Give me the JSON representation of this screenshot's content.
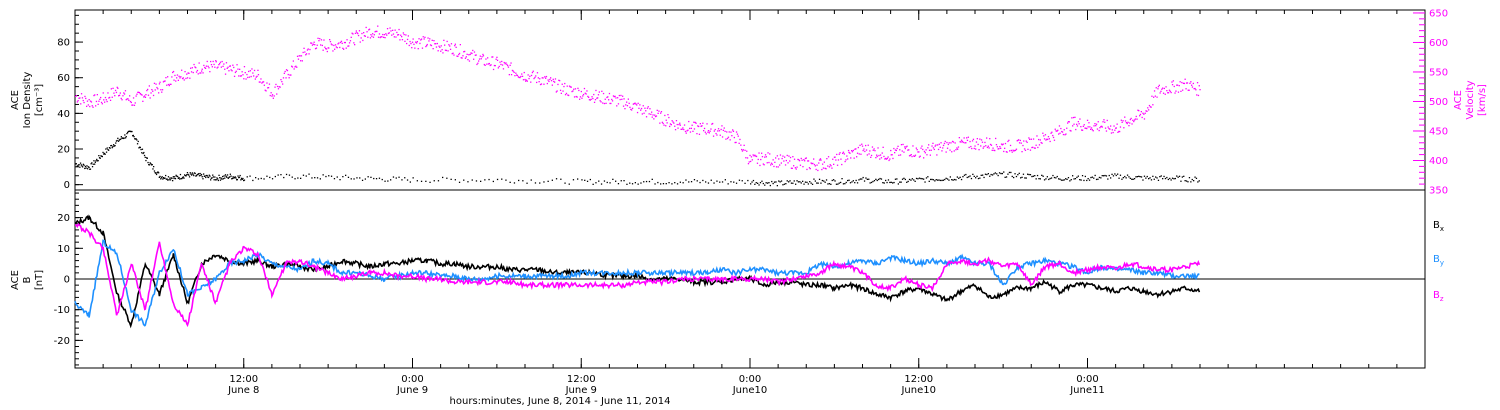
{
  "chart_data": [
    {
      "type": "scatter",
      "title": "",
      "xlabel": "hours:minutes,  June  8, 2014 - June 11, 2014",
      "ylabel_left": [
        "ACE",
        "Ion Density",
        "[cm⁻³]"
      ],
      "ylabel_right": [
        "ACE",
        "Velocity",
        "[km/s]"
      ],
      "xlim_hours": [
        0,
        96
      ],
      "ylim_left": [
        -3,
        98
      ],
      "ylim_right": [
        350,
        655
      ],
      "yticks_left": [
        "0",
        "20",
        "40",
        "60",
        "80"
      ],
      "yticks_right": [
        "350",
        "400",
        "450",
        "500",
        "550",
        "600",
        "650"
      ],
      "colors": {
        "density": "#000000",
        "velocity": "#ff00ff"
      },
      "series": [
        {
          "key": "density",
          "axis": "left",
          "x": [
            0,
            1,
            2,
            3,
            4,
            5,
            6,
            7,
            8,
            9,
            10,
            11,
            12,
            16,
            20,
            24,
            30,
            36,
            40,
            44,
            48,
            50,
            52,
            54,
            56,
            58,
            60,
            62,
            64,
            66,
            68,
            70,
            72,
            74,
            76,
            78,
            80
          ],
          "y": [
            12,
            10,
            18,
            25,
            30,
            15,
            5,
            4,
            6,
            5,
            4,
            5,
            4,
            5,
            4,
            3,
            3,
            2,
            2,
            2,
            2,
            1,
            2,
            2,
            3,
            2,
            3,
            4,
            5,
            6,
            5,
            4,
            4,
            5,
            4,
            4,
            3
          ]
        },
        {
          "key": "velocity",
          "axis": "right",
          "x": [
            0,
            1,
            2,
            3,
            4,
            5,
            6,
            7,
            8,
            9,
            10,
            11,
            12,
            13,
            14,
            15,
            16,
            17,
            18,
            19,
            20,
            21,
            22,
            23,
            24,
            25,
            26,
            27,
            28,
            29,
            30,
            31,
            32,
            33,
            34,
            35,
            36,
            37,
            38,
            39,
            40,
            41,
            42,
            43,
            44,
            45,
            46,
            47,
            48,
            49,
            50,
            51,
            52,
            53,
            54,
            55,
            56,
            57,
            58,
            59,
            60,
            61,
            62,
            63,
            64,
            65,
            66,
            67,
            68,
            69,
            70,
            71,
            72,
            73,
            74,
            75,
            76,
            77,
            78,
            79,
            80
          ],
          "y": [
            510,
            500,
            505,
            520,
            500,
            515,
            525,
            545,
            550,
            560,
            560,
            555,
            550,
            545,
            515,
            545,
            575,
            600,
            595,
            600,
            610,
            620,
            618,
            615,
            602,
            600,
            595,
            590,
            580,
            570,
            565,
            555,
            545,
            540,
            530,
            520,
            515,
            510,
            505,
            500,
            490,
            480,
            470,
            460,
            455,
            455,
            450,
            440,
            400,
            405,
            400,
            398,
            395,
            395,
            400,
            410,
            420,
            415,
            410,
            420,
            415,
            420,
            425,
            430,
            430,
            430,
            425,
            425,
            430,
            440,
            450,
            465,
            460,
            460,
            455,
            470,
            480,
            520,
            525,
            530,
            520
          ]
        }
      ]
    },
    {
      "type": "line",
      "title": "",
      "ylabel": [
        "ACE",
        "B",
        "[nT]"
      ],
      "xlim_hours": [
        0,
        96
      ],
      "ylim": [
        -29,
        29
      ],
      "yticks": [
        "-20",
        "-10",
        "0",
        "10",
        "20"
      ],
      "x_ticks": [
        {
          "hours": 12,
          "label": "12:00",
          "sublabel": "June 8"
        },
        {
          "hours": 24,
          "label": "0:00",
          "sublabel": "June 9"
        },
        {
          "hours": 36,
          "label": "12:00",
          "sublabel": "June 9"
        },
        {
          "hours": 48,
          "label": "0:00",
          "sublabel": "June10"
        },
        {
          "hours": 60,
          "label": "12:00",
          "sublabel": "June10"
        },
        {
          "hours": 72,
          "label": "0:00",
          "sublabel": "June11"
        }
      ],
      "colors": {
        "Bx": "#000000",
        "By": "#1e90ff",
        "Bz": "#ff00ff"
      },
      "legend": [
        {
          "key": "Bx",
          "label": "B",
          "sub": "x"
        },
        {
          "key": "By",
          "label": "B",
          "sub": "y"
        },
        {
          "key": "Bz",
          "label": "B",
          "sub": "z"
        }
      ],
      "x": [
        0,
        1,
        2,
        3,
        4,
        5,
        6,
        7,
        8,
        9,
        10,
        11,
        12,
        13,
        14,
        15,
        16,
        17,
        18,
        19,
        20,
        21,
        22,
        23,
        24,
        25,
        26,
        27,
        28,
        29,
        30,
        31,
        32,
        33,
        34,
        35,
        36,
        37,
        38,
        39,
        40,
        41,
        42,
        43,
        44,
        45,
        46,
        47,
        48,
        49,
        50,
        51,
        52,
        53,
        54,
        55,
        56,
        57,
        58,
        59,
        60,
        61,
        62,
        63,
        64,
        65,
        66,
        67,
        68,
        69,
        70,
        71,
        72,
        73,
        74,
        75,
        76,
        77,
        78,
        79,
        80
      ],
      "series": [
        {
          "key": "Bx",
          "values": [
            18,
            20,
            15,
            -5,
            -15,
            5,
            -5,
            8,
            -8,
            5,
            8,
            6,
            5,
            6,
            4,
            5,
            4,
            3,
            4,
            6,
            5,
            4,
            5,
            5,
            6,
            6,
            5,
            5,
            4,
            4,
            4,
            3,
            3,
            3,
            2,
            2,
            2,
            2,
            1,
            1,
            1,
            0,
            0,
            0,
            -1,
            -1,
            -1,
            0,
            0,
            -2,
            -1,
            -1,
            -2,
            -2,
            -3,
            -2,
            -3,
            -5,
            -6,
            -4,
            -3,
            -5,
            -7,
            -4,
            -2,
            -6,
            -5,
            -3,
            -3,
            -1,
            -4,
            -2,
            -2,
            -3,
            -4,
            -3,
            -4,
            -5,
            -4,
            -3,
            -4
          ]
        },
        {
          "key": "By",
          "values": [
            -8,
            -12,
            12,
            8,
            -10,
            -15,
            2,
            10,
            -5,
            -3,
            0,
            5,
            6,
            8,
            5,
            4,
            3,
            6,
            5,
            2,
            2,
            1,
            0,
            1,
            2,
            2,
            1,
            1,
            0,
            0,
            1,
            1,
            1,
            1,
            1,
            1,
            2,
            2,
            2,
            2,
            2,
            2,
            2,
            2,
            2,
            2,
            3,
            2,
            3,
            3,
            2,
            2,
            2,
            5,
            4,
            5,
            6,
            5,
            7,
            6,
            5,
            6,
            5,
            7,
            5,
            5,
            -2,
            4,
            5,
            6,
            5,
            4,
            2,
            4,
            3,
            3,
            2,
            2,
            1,
            1,
            1
          ]
        },
        {
          "key": "Bz",
          "values": [
            18,
            15,
            10,
            -12,
            5,
            -10,
            12,
            -8,
            -15,
            5,
            -8,
            5,
            10,
            8,
            -5,
            5,
            6,
            4,
            2,
            0,
            1,
            2,
            2,
            1,
            1,
            0,
            0,
            -1,
            -1,
            -1,
            -1,
            -1,
            -2,
            -2,
            -2,
            -2,
            -2,
            -2,
            -2,
            -2,
            -1,
            -1,
            -1,
            0,
            0,
            0,
            0,
            0,
            0,
            0,
            -1,
            0,
            1,
            2,
            5,
            4,
            2,
            -2,
            -3,
            0,
            -2,
            -3,
            5,
            6,
            5,
            6,
            4,
            5,
            -2,
            4,
            5,
            2,
            3,
            4,
            3,
            5,
            4,
            3,
            3,
            4,
            5
          ]
        }
      ]
    }
  ]
}
